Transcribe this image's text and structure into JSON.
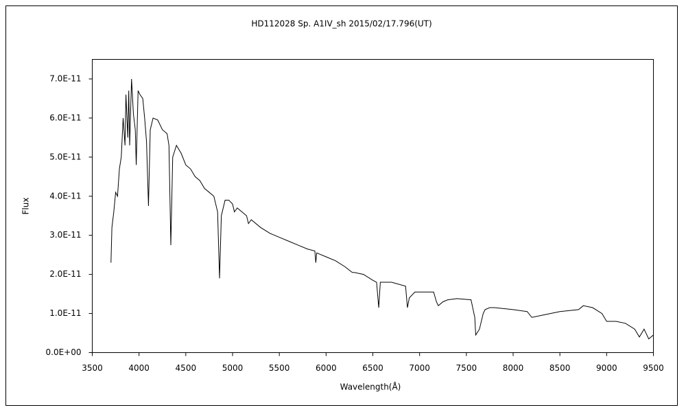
{
  "chart_data": {
    "type": "line",
    "title": "HD112028    Sp. A1IV_sh    2015/02/17.796(UT)",
    "x_label": "Wavelength(Å)",
    "y_label": "Flux",
    "color": "#000000",
    "grid": false,
    "xlim": [
      3500,
      9500
    ],
    "xticks": [
      3500,
      4000,
      4500,
      5000,
      5500,
      6000,
      6500,
      7000,
      7500,
      8000,
      8500,
      9000,
      9500
    ],
    "ylim": [
      0,
      7.5e-11
    ],
    "yticks": [
      {
        "value": 0,
        "label": "0.0E+00"
      },
      {
        "value": 1e-11,
        "label": "1.0E-11"
      },
      {
        "value": 2e-11,
        "label": "2.0E-11"
      },
      {
        "value": 3e-11,
        "label": "3.0E-11"
      },
      {
        "value": 4e-11,
        "label": "4.0E-11"
      },
      {
        "value": 5e-11,
        "label": "5.0E-11"
      },
      {
        "value": 6e-11,
        "label": "6.0E-11"
      },
      {
        "value": 7e-11,
        "label": "7.0E-11"
      }
    ],
    "x": [
      3700,
      3710,
      3730,
      3750,
      3770,
      3790,
      3810,
      3830,
      3850,
      3860,
      3880,
      3890,
      3900,
      3920,
      3940,
      3960,
      3970,
      3990,
      4010,
      4040,
      4060,
      4080,
      4101,
      4120,
      4150,
      4200,
      4250,
      4300,
      4320,
      4340,
      4360,
      4400,
      4450,
      4500,
      4550,
      4600,
      4650,
      4700,
      4750,
      4800,
      4840,
      4861,
      4880,
      4920,
      4960,
      5000,
      5020,
      5050,
      5100,
      5150,
      5170,
      5200,
      5300,
      5400,
      5500,
      5600,
      5700,
      5800,
      5880,
      5890,
      5900,
      6000,
      6100,
      6200,
      6280,
      6300,
      6400,
      6500,
      6540,
      6563,
      6580,
      6700,
      6850,
      6870,
      6890,
      6950,
      7150,
      7180,
      7200,
      7250,
      7300,
      7400,
      7550,
      7590,
      7600,
      7640,
      7680,
      7700,
      7750,
      7800,
      8000,
      8150,
      8200,
      8300,
      8500,
      8700,
      8750,
      8850,
      8950,
      9000,
      9100,
      9200,
      9300,
      9350,
      9400,
      9450,
      9500
    ],
    "values": [
      2.3e-11,
      3.2e-11,
      3.6e-11,
      4.1e-11,
      4e-11,
      4.7e-11,
      5e-11,
      6e-11,
      5.3e-11,
      6.6e-11,
      5.5e-11,
      6.7e-11,
      5.3e-11,
      7e-11,
      6.1e-11,
      5.7e-11,
      4.8e-11,
      6.7e-11,
      6.6e-11,
      6.5e-11,
      6e-11,
      5.4e-11,
      3.75e-11,
      5.7e-11,
      6e-11,
      5.95e-11,
      5.7e-11,
      5.6e-11,
      5.3e-11,
      2.75e-11,
      5e-11,
      5.3e-11,
      5.1e-11,
      4.8e-11,
      4.7e-11,
      4.5e-11,
      4.4e-11,
      4.2e-11,
      4.1e-11,
      4e-11,
      3.6e-11,
      1.9e-11,
      3.5e-11,
      3.9e-11,
      3.9e-11,
      3.8e-11,
      3.6e-11,
      3.7e-11,
      3.6e-11,
      3.5e-11,
      3.3e-11,
      3.4e-11,
      3.2e-11,
      3.05e-11,
      2.95e-11,
      2.85e-11,
      2.75e-11,
      2.65e-11,
      2.6e-11,
      2.3e-11,
      2.55e-11,
      2.45e-11,
      2.35e-11,
      2.2e-11,
      2.05e-11,
      2.05e-11,
      2e-11,
      1.85e-11,
      1.8e-11,
      1.15e-11,
      1.8e-11,
      1.8e-11,
      1.7e-11,
      1.15e-11,
      1.4e-11,
      1.55e-11,
      1.55e-11,
      1.3e-11,
      1.2e-11,
      1.3e-11,
      1.35e-11,
      1.38e-11,
      1.35e-11,
      9e-12,
      4.5e-12,
      6e-12,
      1e-11,
      1.1e-11,
      1.15e-11,
      1.15e-11,
      1.1e-11,
      1.05e-11,
      9e-12,
      9.5e-12,
      1.05e-11,
      1.1e-11,
      1.2e-11,
      1.15e-11,
      1e-11,
      8e-12,
      8e-12,
      7.5e-12,
      6e-12,
      4e-12,
      6e-12,
      3.5e-12,
      4.5e-12
    ]
  }
}
